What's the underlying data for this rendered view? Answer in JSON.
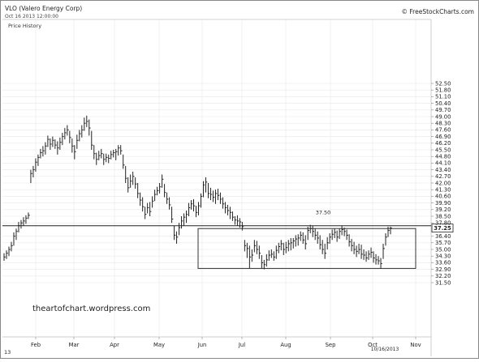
{
  "header": {
    "title": "VLO (Valero Energy Corp)",
    "timestamp": "Oct 16 2013 12:00:00",
    "subtitle": "Price History",
    "copyright": "© FreeStockCharts.com"
  },
  "watermark": "theartofchart.wordpress.com",
  "corner_label": "13",
  "colors": {
    "bars": "#222222",
    "grid": "#e8e8e8",
    "border": "#888888",
    "text": "#222222"
  },
  "chart_data": {
    "type": "ohlc",
    "title": "VLO (Valero Energy Corp)",
    "xlabel": "",
    "ylabel": "",
    "x_ticks": [
      "Feb",
      "Mar",
      "Apr",
      "May",
      "Jun",
      "Jul",
      "Aug",
      "Sep",
      "Oct",
      "Nov"
    ],
    "y_ticks": [
      "52.50",
      "51.80",
      "51.10",
      "50.40",
      "49.70",
      "49.00",
      "48.30",
      "47.60",
      "46.90",
      "46.20",
      "45.50",
      "44.80",
      "44.10",
      "43.40",
      "42.70",
      "42.00",
      "41.30",
      "40.60",
      "39.90",
      "39.20",
      "38.50",
      "37.80",
      "36.40",
      "35.70",
      "35.00",
      "34.30",
      "33.60",
      "32.90",
      "32.20",
      "31.50"
    ],
    "ylim": [
      31.2,
      52.9
    ],
    "grid": true,
    "last_price_label": "37.25",
    "last_price": 37.25,
    "horizontal_line": {
      "value": 37.5,
      "label": "37.50"
    },
    "date_label": "10/16/2013",
    "range_box": {
      "x_start": "Jun 1",
      "x_end": "Oct 18",
      "top": 37.2,
      "bottom": 33.0
    },
    "series": [
      {
        "values": [
          [
            33.8,
            34.6,
            34.2
          ],
          [
            34.0,
            34.9,
            34.6
          ],
          [
            34.3,
            35.3,
            35.0
          ],
          [
            34.8,
            35.8,
            35.4
          ],
          [
            35.4,
            36.8,
            36.4
          ],
          [
            36.0,
            37.2,
            36.9
          ],
          [
            36.8,
            37.9,
            37.5
          ],
          [
            37.2,
            38.1,
            37.8
          ],
          [
            37.5,
            38.4,
            38.0
          ],
          [
            37.7,
            38.6,
            38.3
          ],
          [
            38.2,
            38.9,
            38.6
          ],
          [
            42.0,
            43.4,
            43.0
          ],
          [
            42.6,
            43.8,
            43.4
          ],
          [
            43.2,
            44.6,
            44.2
          ],
          [
            43.8,
            45.0,
            44.7
          ],
          [
            44.6,
            45.6,
            45.2
          ],
          [
            44.8,
            45.9,
            45.4
          ],
          [
            45.0,
            46.3,
            45.9
          ],
          [
            45.8,
            47.0,
            46.6
          ],
          [
            45.5,
            46.7,
            46.1
          ],
          [
            45.8,
            46.9,
            46.5
          ],
          [
            45.6,
            46.6,
            46.0
          ],
          [
            45.0,
            46.4,
            45.7
          ],
          [
            45.5,
            46.8,
            46.3
          ],
          [
            46.0,
            47.3,
            46.9
          ],
          [
            46.6,
            47.8,
            47.3
          ],
          [
            47.0,
            48.1,
            47.6
          ],
          [
            46.2,
            47.5,
            46.8
          ],
          [
            45.2,
            46.7,
            45.9
          ],
          [
            44.5,
            46.0,
            45.3
          ],
          [
            45.6,
            47.1,
            46.5
          ],
          [
            46.4,
            47.6,
            47.2
          ],
          [
            46.8,
            48.1,
            47.6
          ],
          [
            47.5,
            48.9,
            48.3
          ],
          [
            47.9,
            49.1,
            48.5
          ],
          [
            47.0,
            48.7,
            47.8
          ],
          [
            45.5,
            47.5,
            46.0
          ],
          [
            44.5,
            46.0,
            45.1
          ],
          [
            43.9,
            45.2,
            44.5
          ],
          [
            44.4,
            45.4,
            44.9
          ],
          [
            44.6,
            45.6,
            45.1
          ],
          [
            43.9,
            45.1,
            44.5
          ],
          [
            44.2,
            45.1,
            44.7
          ],
          [
            44.1,
            45.0,
            44.6
          ],
          [
            44.5,
            45.4,
            45.0
          ],
          [
            44.7,
            45.5,
            45.2
          ],
          [
            44.4,
            45.6,
            45.3
          ],
          [
            44.9,
            46.0,
            45.7
          ],
          [
            45.0,
            46.0,
            45.4
          ],
          [
            43.5,
            45.0,
            43.9
          ],
          [
            42.0,
            43.8,
            42.5
          ],
          [
            41.0,
            42.6,
            41.5
          ],
          [
            41.5,
            42.9,
            42.2
          ],
          [
            41.8,
            43.2,
            42.7
          ],
          [
            41.4,
            42.6,
            41.9
          ],
          [
            40.4,
            42.0,
            40.9
          ],
          [
            39.6,
            41.0,
            40.2
          ],
          [
            39.0,
            40.5,
            39.5
          ],
          [
            38.2,
            39.5,
            38.7
          ],
          [
            38.8,
            39.9,
            39.4
          ],
          [
            38.5,
            40.0,
            39.0
          ],
          [
            39.4,
            40.6,
            40.1
          ],
          [
            40.1,
            41.3,
            40.8
          ],
          [
            40.7,
            41.6,
            41.2
          ],
          [
            40.9,
            42.0,
            41.6
          ],
          [
            41.5,
            42.9,
            42.4
          ],
          [
            40.5,
            41.9,
            41.0
          ],
          [
            39.8,
            41.0,
            40.3
          ],
          [
            39.2,
            40.5,
            39.7
          ],
          [
            37.8,
            39.5,
            38.2
          ],
          [
            36.0,
            37.5,
            36.5
          ],
          [
            35.6,
            36.9,
            36.3
          ],
          [
            36.5,
            37.8,
            37.3
          ],
          [
            37.2,
            38.5,
            38.0
          ],
          [
            37.5,
            38.8,
            38.4
          ],
          [
            37.8,
            39.1,
            38.7
          ],
          [
            38.5,
            39.9,
            39.4
          ],
          [
            39.2,
            40.2,
            39.8
          ],
          [
            39.0,
            40.3,
            39.6
          ],
          [
            38.4,
            39.6,
            38.9
          ],
          [
            38.6,
            40.0,
            39.6
          ],
          [
            39.4,
            40.9,
            40.6
          ],
          [
            40.5,
            42.2,
            41.8
          ],
          [
            41.0,
            42.6,
            42.1
          ],
          [
            40.4,
            42.0,
            40.9
          ],
          [
            40.2,
            41.5,
            40.8
          ],
          [
            40.0,
            41.2,
            40.5
          ],
          [
            39.8,
            41.3,
            40.9
          ],
          [
            40.2,
            41.4,
            40.7
          ],
          [
            39.8,
            41.0,
            40.3
          ],
          [
            39.3,
            40.5,
            39.8
          ],
          [
            38.8,
            40.0,
            39.4
          ],
          [
            38.6,
            39.7,
            39.1
          ],
          [
            38.2,
            39.5,
            38.9
          ],
          [
            38.0,
            39.0,
            38.4
          ],
          [
            37.6,
            38.5,
            38.1
          ],
          [
            37.5,
            38.6,
            38.0
          ],
          [
            37.3,
            38.3,
            37.9
          ],
          [
            37.0,
            37.9,
            37.4
          ],
          [
            34.8,
            36.0,
            35.4
          ],
          [
            34.1,
            35.7,
            35.1
          ],
          [
            33.0,
            35.4,
            34.2
          ],
          [
            33.7,
            35.0,
            34.4
          ],
          [
            34.7,
            36.0,
            35.4
          ],
          [
            34.5,
            35.9,
            35.0
          ],
          [
            34.0,
            35.4,
            34.6
          ],
          [
            33.0,
            34.4,
            33.6
          ],
          [
            32.9,
            33.9,
            33.4
          ],
          [
            33.2,
            34.5,
            33.9
          ],
          [
            33.8,
            34.9,
            34.4
          ],
          [
            34.1,
            35.0,
            34.5
          ],
          [
            33.8,
            34.8,
            34.2
          ],
          [
            34.0,
            35.4,
            34.9
          ],
          [
            34.6,
            35.7,
            35.3
          ],
          [
            34.9,
            36.0,
            35.6
          ],
          [
            34.4,
            35.7,
            35.0
          ],
          [
            34.6,
            35.8,
            35.2
          ],
          [
            34.8,
            36.0,
            35.6
          ],
          [
            34.9,
            36.2,
            35.7
          ],
          [
            35.1,
            36.2,
            35.9
          ],
          [
            35.3,
            36.5,
            36.1
          ],
          [
            35.4,
            36.6,
            36.2
          ],
          [
            35.9,
            36.9,
            36.5
          ],
          [
            35.6,
            36.8,
            36.0
          ],
          [
            35.0,
            36.5,
            35.6
          ],
          [
            36.0,
            37.4,
            37.0
          ],
          [
            36.7,
            37.6,
            37.2
          ],
          [
            36.3,
            37.5,
            36.9
          ],
          [
            36.0,
            37.2,
            36.5
          ],
          [
            35.6,
            36.9,
            36.2
          ],
          [
            35.0,
            36.5,
            35.5
          ],
          [
            34.5,
            36.0,
            35.0
          ],
          [
            34.0,
            35.6,
            34.6
          ],
          [
            35.0,
            36.3,
            35.7
          ],
          [
            35.6,
            36.7,
            36.3
          ],
          [
            36.0,
            37.1,
            36.6
          ],
          [
            36.2,
            37.2,
            36.8
          ],
          [
            35.8,
            37.0,
            36.3
          ],
          [
            36.1,
            37.2,
            36.9
          ],
          [
            36.5,
            37.5,
            37.1
          ],
          [
            36.4,
            37.3,
            36.9
          ],
          [
            36.0,
            37.1,
            36.5
          ],
          [
            35.3,
            36.6,
            35.8
          ],
          [
            34.8,
            36.1,
            35.4
          ],
          [
            34.5,
            35.8,
            35.0
          ],
          [
            34.2,
            35.4,
            34.8
          ],
          [
            34.5,
            35.6,
            35.0
          ],
          [
            34.0,
            35.5,
            34.5
          ],
          [
            33.9,
            35.0,
            34.4
          ],
          [
            33.7,
            34.8,
            34.1
          ],
          [
            33.9,
            34.9,
            34.5
          ],
          [
            34.1,
            35.2,
            34.7
          ],
          [
            33.6,
            34.8,
            34.1
          ],
          [
            33.4,
            34.5,
            33.9
          ],
          [
            33.4,
            34.3,
            33.8
          ],
          [
            33.0,
            34.1,
            33.5
          ],
          [
            34.0,
            35.6,
            35.1
          ],
          [
            35.4,
            36.7,
            36.3
          ],
          [
            36.3,
            37.4,
            37.0
          ],
          [
            36.6,
            37.4,
            37.25
          ]
        ]
      }
    ]
  }
}
